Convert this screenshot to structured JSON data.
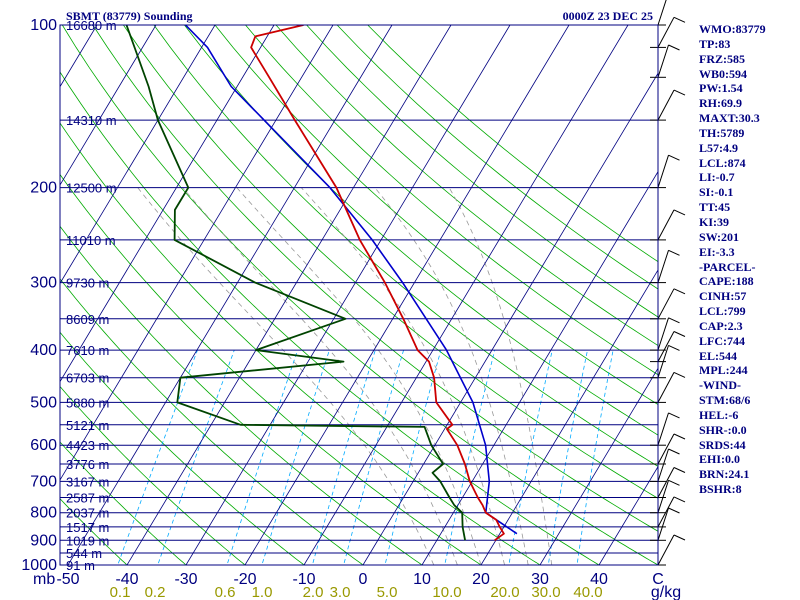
{
  "header": {
    "station": "SBMT (83779) Sounding",
    "time": "0000Z 23 DEC 25"
  },
  "indices": [
    "WMO:83779",
    "TP:83",
    "FRZ:585",
    "WB0:594",
    "PW:1.54",
    "RH:69.9",
    "MAXT:30.3",
    "TH:5789",
    "L57:4.9",
    "LCL:874",
    "LI:-0.7",
    "SI:-0.1",
    "TT:45",
    "KI:39",
    "SW:201",
    "EI:-3.3",
    "-PARCEL-",
    "CAPE:188",
    "CINH:57",
    "LCL:799",
    "CAP:2.3",
    "LFC:744",
    "EL:544",
    "MPL:244",
    "-WIND-",
    "STM:68/6",
    "HEL:-6",
    "SHR-:0.0",
    "SRDS:44",
    "EHI:0.0",
    "BRN:24.1",
    "BSHR:8"
  ],
  "colors": {
    "frame": "#000080",
    "isobar": "#000080",
    "isotherm": "#000080",
    "dry_adiabat": "#00aa00",
    "moist_adiabat": "#999999",
    "mixing_ratio": "#00aaff",
    "temperature": "#cc0000",
    "dewpoint": "#004400",
    "parcel": "#0000cc",
    "wind_barb": "#000000",
    "mixing_ratio_label": "#999900"
  },
  "chart_data": {
    "type": "line",
    "title": "SBMT (83779) Sounding",
    "subtitle": "0000Z 23 DEC 25",
    "xlabel": "",
    "ylabel": "mb",
    "pressure_range": [
      1000,
      100
    ],
    "skewed_temperature_range": [
      -50,
      50
    ],
    "grid": true,
    "legend": "none",
    "pressure_ticks": [
      100,
      200,
      300,
      400,
      500,
      600,
      700,
      800,
      900,
      1000
    ],
    "temperature_ticks": [
      -50,
      -40,
      -30,
      -20,
      -10,
      0,
      10,
      20,
      30,
      40
    ],
    "x_tick_labels": [
      "-50",
      "-40",
      "-30",
      "-20",
      "-10",
      "0",
      "10",
      "20",
      "30",
      "40",
      "C"
    ],
    "pressure_unit": "mb",
    "temperature_unit": "C",
    "mixing_ratio_ticks": [
      "0.1",
      "0.2",
      "0.6",
      "1.0",
      "2.0",
      "3.0",
      "5.0",
      "10.0",
      "20.0",
      "30.0",
      "40.0"
    ],
    "mixing_ratio_unit": "g/kg",
    "height_labels": [
      {
        "p": 100,
        "h": "16680 m"
      },
      {
        "p": 150,
        "h": "14310 m"
      },
      {
        "p": 200,
        "h": "12500 m"
      },
      {
        "p": 250,
        "h": "11010 m"
      },
      {
        "p": 300,
        "h": "9730 m"
      },
      {
        "p": 350,
        "h": "8609 m"
      },
      {
        "p": 400,
        "h": "7610 m"
      },
      {
        "p": 450,
        "h": "6703 m"
      },
      {
        "p": 500,
        "h": "5880 m"
      },
      {
        "p": 550,
        "h": "5121 m"
      },
      {
        "p": 600,
        "h": "4423 m"
      },
      {
        "p": 650,
        "h": "3776 m"
      },
      {
        "p": 700,
        "h": "3167 m"
      },
      {
        "p": 750,
        "h": "2587 m"
      },
      {
        "p": 800,
        "h": "2037 m"
      },
      {
        "p": 850,
        "h": "1517 m"
      },
      {
        "p": 900,
        "h": "1019 m"
      },
      {
        "p": 950,
        "h": "544 m"
      },
      {
        "p": 1000,
        "h": "91 m"
      }
    ],
    "temperature": [
      {
        "p": 900,
        "t": 19.8
      },
      {
        "p": 875,
        "t": 20.7
      },
      {
        "p": 850,
        "t": 19.3
      },
      {
        "p": 825,
        "t": 18.0
      },
      {
        "p": 800,
        "t": 15.5
      },
      {
        "p": 775,
        "t": 14.2
      },
      {
        "p": 750,
        "t": 12.6
      },
      {
        "p": 700,
        "t": 9.6
      },
      {
        "p": 650,
        "t": 7.0
      },
      {
        "p": 600,
        "t": 3.8
      },
      {
        "p": 560,
        "t": 0.4
      },
      {
        "p": 550,
        "t": 0.9
      },
      {
        "p": 500,
        "t": -4.1
      },
      {
        "p": 450,
        "t": -7.0
      },
      {
        "p": 420,
        "t": -9.5
      },
      {
        "p": 400,
        "t": -12.6
      },
      {
        "p": 350,
        "t": -18.2
      },
      {
        "p": 300,
        "t": -25.0
      },
      {
        "p": 250,
        "t": -33.6
      },
      {
        "p": 200,
        "t": -42.9
      },
      {
        "p": 150,
        "t": -56.8
      },
      {
        "p": 125,
        "t": -65.5
      },
      {
        "p": 110,
        "t": -71.6
      },
      {
        "p": 105,
        "t": -72.0
      },
      {
        "p": 100,
        "t": -65.0
      }
    ],
    "dewpoint": [
      {
        "p": 900,
        "t": 14.8
      },
      {
        "p": 850,
        "t": 13.0
      },
      {
        "p": 800,
        "t": 11.5
      },
      {
        "p": 775,
        "t": 9.4
      },
      {
        "p": 750,
        "t": 7.8
      },
      {
        "p": 700,
        "t": 4.6
      },
      {
        "p": 675,
        "t": 2.4
      },
      {
        "p": 650,
        "t": 3.3
      },
      {
        "p": 600,
        "t": -0.6
      },
      {
        "p": 555,
        "t": -3.6
      },
      {
        "p": 550,
        "t": -35.0
      },
      {
        "p": 500,
        "t": -48.0
      },
      {
        "p": 450,
        "t": -50.0
      },
      {
        "p": 420,
        "t": -24.0
      },
      {
        "p": 400,
        "t": -40.0
      },
      {
        "p": 350,
        "t": -28.0
      },
      {
        "p": 300,
        "t": -47.0
      },
      {
        "p": 250,
        "t": -65.0
      },
      {
        "p": 220,
        "t": -68.0
      },
      {
        "p": 200,
        "t": -68.0
      },
      {
        "p": 150,
        "t": -80.0
      },
      {
        "p": 130,
        "t": -85.0
      },
      {
        "p": 100,
        "t": -95.0
      }
    ],
    "parcel": [
      {
        "p": 875,
        "t": 22.9
      },
      {
        "p": 800,
        "t": 15.5
      },
      {
        "p": 700,
        "t": 12.9
      },
      {
        "p": 600,
        "t": 8.6
      },
      {
        "p": 500,
        "t": 2.1
      },
      {
        "p": 400,
        "t": -7.7
      },
      {
        "p": 300,
        "t": -22.0
      },
      {
        "p": 250,
        "t": -31.5
      },
      {
        "p": 200,
        "t": -44.0
      },
      {
        "p": 150,
        "t": -62.0
      },
      {
        "p": 130,
        "t": -71.0
      },
      {
        "p": 110,
        "t": -79.0
      },
      {
        "p": 100,
        "t": -85.0
      }
    ],
    "winds": [
      {
        "p": 1000
      },
      {
        "p": 900
      },
      {
        "p": 850
      },
      {
        "p": 800
      },
      {
        "p": 750
      },
      {
        "p": 700
      },
      {
        "p": 650
      },
      {
        "p": 600
      },
      {
        "p": 500
      },
      {
        "p": 450
      },
      {
        "p": 420
      },
      {
        "p": 400
      },
      {
        "p": 350
      },
      {
        "p": 300
      },
      {
        "p": 250
      },
      {
        "p": 200
      },
      {
        "p": 150
      },
      {
        "p": 125
      },
      {
        "p": 110
      },
      {
        "p": 100
      }
    ]
  }
}
